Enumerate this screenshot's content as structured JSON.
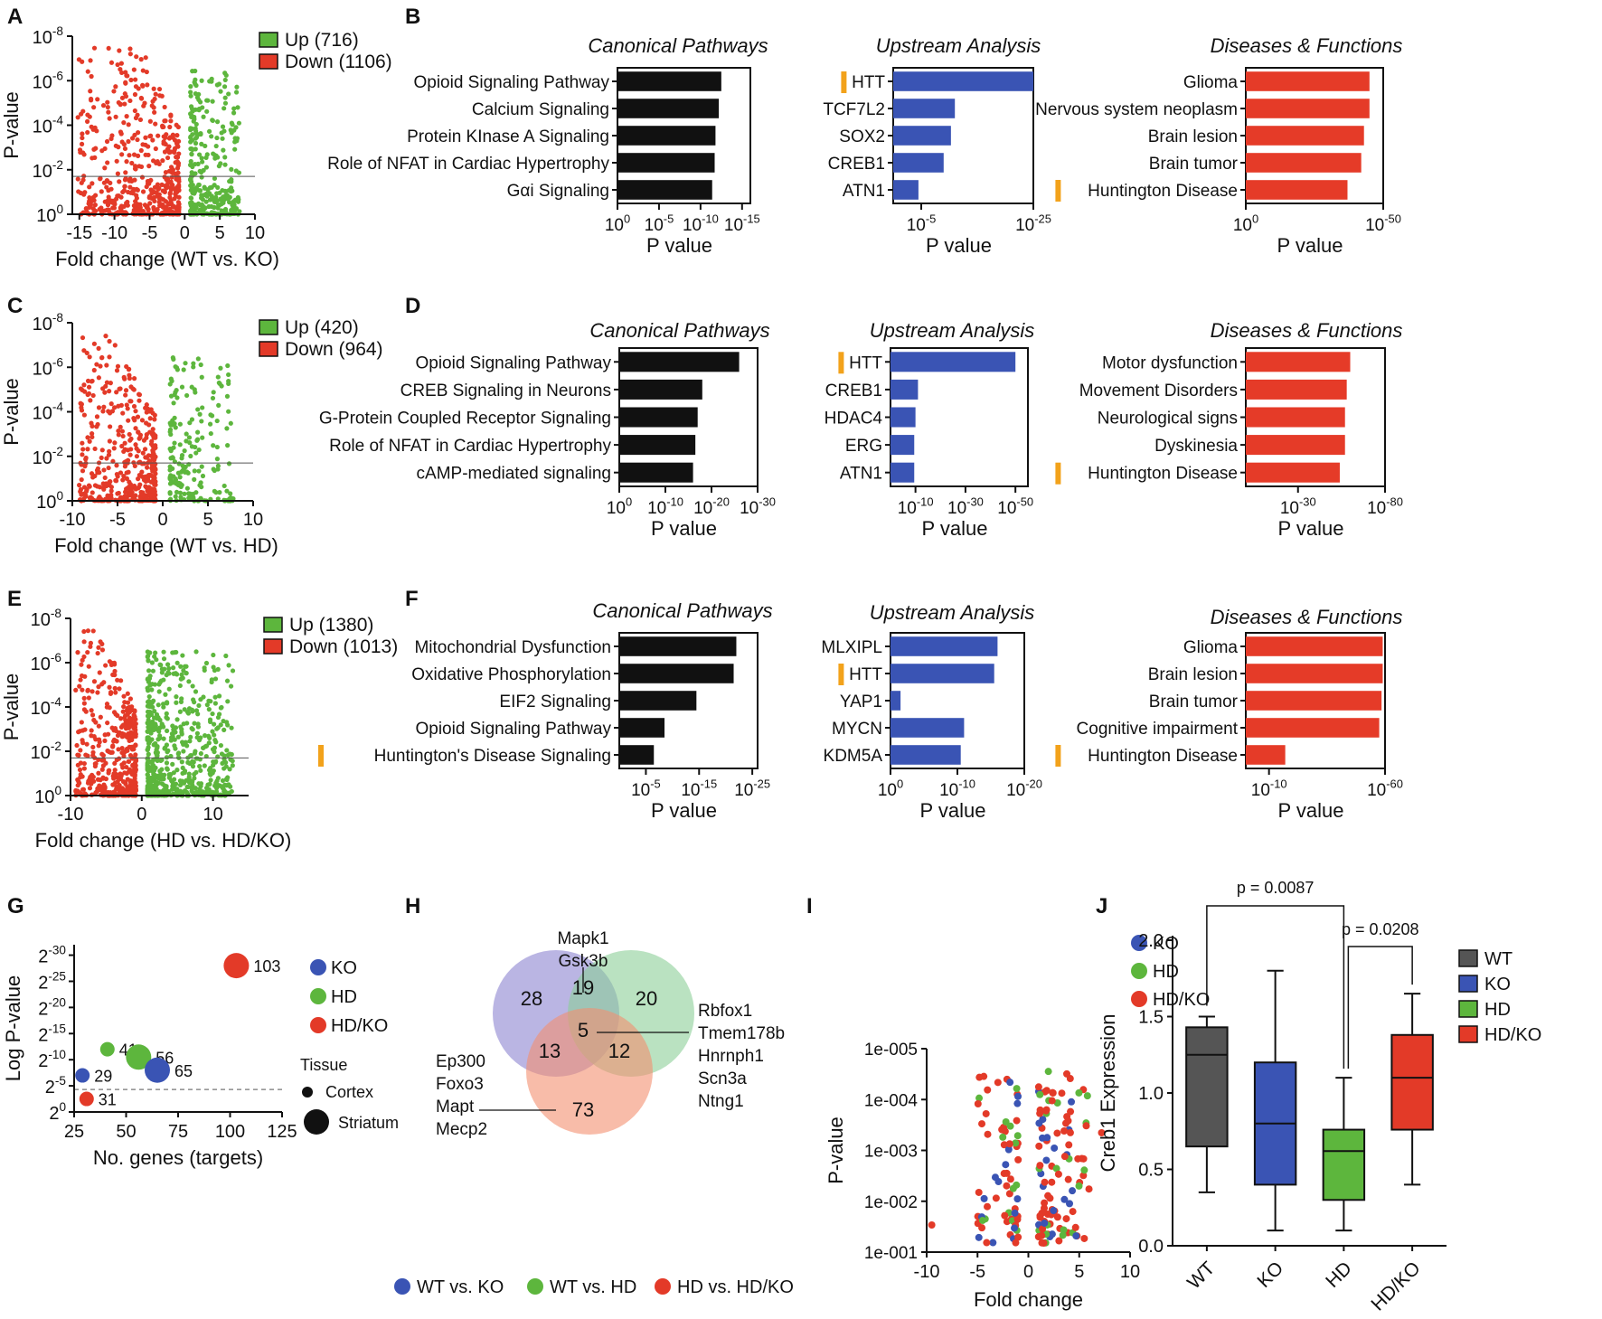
{
  "panel_letters": {
    "A": "A",
    "B": "B",
    "C": "C",
    "D": "D",
    "E": "E",
    "F": "F",
    "G": "G",
    "H": "H",
    "I": "I",
    "J": "J"
  },
  "colors": {
    "up": "#5db63d",
    "down": "#e33a28",
    "blue": "#3a54b4",
    "red": "#e53b28",
    "black": "#111111",
    "orange": "#f2a21b",
    "ko": "#3a54b4",
    "hd": "#5db63d",
    "hdko": "#e33a28",
    "wt": "#555555"
  },
  "panel_titles": {
    "canonical": "Canonical Pathways",
    "upstream": "Upstream Analysis",
    "diseases": "Diseases & Functions"
  },
  "volcano": [
    {
      "id": "A",
      "title": "",
      "xlabel": "Fold change (WT vs. KO)",
      "ylabel": "P-value",
      "xticks": [
        "-15",
        "-10",
        "-5",
        "0",
        "5",
        "10"
      ],
      "xvals": [
        -15,
        -10,
        -5,
        0,
        5,
        10
      ],
      "xlim": [
        -16,
        10
      ],
      "yticks": [
        {
          "b": "10",
          "e": "-8"
        },
        {
          "b": "10",
          "e": "-6"
        },
        {
          "b": "10",
          "e": "-4"
        },
        {
          "b": "10",
          "e": "-2"
        },
        {
          "b": "10",
          "e": "0"
        }
      ],
      "legend": [
        {
          "label": "Up (716)",
          "color": "#5db63d"
        },
        {
          "label": "Down (1106)",
          "color": "#e33a28"
        }
      ],
      "threshold": 1.7,
      "up_count": 716,
      "down_count": 1106
    },
    {
      "id": "C",
      "title": "",
      "xlabel": "Fold change (WT vs. HD)",
      "ylabel": "P-value",
      "xticks": [
        "-10",
        "-5",
        "0",
        "5",
        "10"
      ],
      "xvals": [
        -10,
        -5,
        0,
        5,
        10
      ],
      "xlim": [
        -10,
        10
      ],
      "yticks": [
        {
          "b": "10",
          "e": "-8"
        },
        {
          "b": "10",
          "e": "-6"
        },
        {
          "b": "10",
          "e": "-4"
        },
        {
          "b": "10",
          "e": "-2"
        },
        {
          "b": "10",
          "e": "0"
        }
      ],
      "legend": [
        {
          "label": "Up (420)",
          "color": "#5db63d"
        },
        {
          "label": "Down (964)",
          "color": "#e33a28"
        }
      ],
      "threshold": 1.7,
      "up_count": 420,
      "down_count": 964
    },
    {
      "id": "E",
      "title": "",
      "xlabel": "Fold change (HD vs. HD/KO)",
      "ylabel": "P-value",
      "xticks": [
        "-10",
        "0",
        "10"
      ],
      "xvals": [
        -10,
        0,
        10
      ],
      "xlim": [
        -10,
        15
      ],
      "yticks": [
        {
          "b": "10",
          "e": "-8"
        },
        {
          "b": "10",
          "e": "-6"
        },
        {
          "b": "10",
          "e": "-4"
        },
        {
          "b": "10",
          "e": "-2"
        },
        {
          "b": "10",
          "e": "0"
        }
      ],
      "legend": [
        {
          "label": "Up (1380)",
          "color": "#5db63d"
        },
        {
          "label": "Down (1013)",
          "color": "#e33a28"
        }
      ],
      "threshold": 1.7,
      "up_count": 1380,
      "down_count": 1013
    }
  ],
  "chart_data": [
    {
      "panel": "B",
      "group": "canonical",
      "type": "bar",
      "orientation": "horizontal",
      "title": "Canonical Pathways",
      "xlabel": "P value",
      "unit": "-log10 p",
      "categories": [
        "Opioid Signaling Pathway",
        "Calcium Signaling",
        "Protein KInase A Signaling",
        "Role of NFAT in Cardiac Hypertrophy",
        "Gαi Signaling"
      ],
      "values": [
        12.5,
        12.2,
        11.8,
        11.7,
        11.4
      ],
      "xlim": [
        0,
        16
      ],
      "ticks": [
        {
          "v": 0,
          "b": "10",
          "e": "0"
        },
        {
          "v": 5,
          "b": "10",
          "e": "-5"
        },
        {
          "v": 10,
          "b": "10",
          "e": "-10"
        },
        {
          "v": 15,
          "b": "10",
          "e": "-15"
        }
      ],
      "highlight": [],
      "color": "#111111"
    },
    {
      "panel": "B",
      "group": "upstream",
      "type": "bar",
      "orientation": "horizontal",
      "title": "Upstream Analysis",
      "xlabel": "P value",
      "unit": "-log10 p",
      "categories": [
        "HTT",
        "TCF7L2",
        "SOX2",
        "CREB1",
        "ATN1"
      ],
      "values": [
        25,
        11,
        10.3,
        9,
        4.5
      ],
      "xlim": [
        0,
        25
      ],
      "ticks": [
        {
          "v": 5,
          "b": "10",
          "e": "-5"
        },
        {
          "v": 25,
          "b": "10",
          "e": "-25"
        }
      ],
      "highlight": [
        "HTT"
      ],
      "color": "#3a54b4"
    },
    {
      "panel": "B",
      "group": "diseases",
      "type": "bar",
      "orientation": "horizontal",
      "title": "Diseases & Functions",
      "xlabel": "P value",
      "unit": "-log10 p",
      "categories": [
        "Glioma",
        "Nervous system neoplasm",
        "Brain lesion",
        "Brain tumor",
        "Huntington Disease"
      ],
      "values": [
        45,
        45,
        43,
        42,
        37
      ],
      "xlim": [
        0,
        50
      ],
      "ticks": [
        {
          "v": 0,
          "b": "10",
          "e": "0"
        },
        {
          "v": 50,
          "b": "10",
          "e": "-50"
        }
      ],
      "highlight": [
        "Huntington Disease"
      ],
      "color": "#e53b28"
    },
    {
      "panel": "D",
      "group": "canonical",
      "type": "bar",
      "orientation": "horizontal",
      "title": "Canonical Pathways",
      "xlabel": "P value",
      "unit": "-log10 p",
      "categories": [
        "Opioid Signaling Pathway",
        "CREB Signaling in Neurons",
        "G-Protein Coupled Receptor Signaling",
        "Role of NFAT in Cardiac Hypertrophy",
        "cAMP-mediated signaling"
      ],
      "values": [
        26,
        18,
        17,
        16.5,
        16
      ],
      "xlim": [
        0,
        30
      ],
      "ticks": [
        {
          "v": 0,
          "b": "10",
          "e": "0"
        },
        {
          "v": 10,
          "b": "10",
          "e": "-10"
        },
        {
          "v": 20,
          "b": "10",
          "e": "-20"
        },
        {
          "v": 30,
          "b": "10",
          "e": "-30"
        }
      ],
      "highlight": [],
      "color": "#111111"
    },
    {
      "panel": "D",
      "group": "upstream",
      "type": "bar",
      "orientation": "horizontal",
      "title": "Upstream Analysis",
      "xlabel": "P value",
      "unit": "-log10 p",
      "categories": [
        "HTT",
        "CREB1",
        "HDAC4",
        "ERG",
        "ATN1"
      ],
      "values": [
        50,
        11,
        10,
        9.5,
        9.5
      ],
      "xlim": [
        0,
        55
      ],
      "ticks": [
        {
          "v": 10,
          "b": "10",
          "e": "-10"
        },
        {
          "v": 30,
          "b": "10",
          "e": "-30"
        },
        {
          "v": 50,
          "b": "10",
          "e": "-50"
        }
      ],
      "highlight": [
        "HTT"
      ],
      "color": "#3a54b4"
    },
    {
      "panel": "D",
      "group": "diseases",
      "type": "bar",
      "orientation": "horizontal",
      "title": "Diseases & Functions",
      "xlabel": "P value",
      "unit": "-log10 p",
      "categories": [
        "Motor dysfunction",
        "Movement Disorders",
        "Neurological signs",
        "Dyskinesia",
        "Huntington Disease"
      ],
      "values": [
        60,
        58,
        57,
        57,
        54
      ],
      "xlim": [
        0,
        80
      ],
      "ticks": [
        {
          "v": 30,
          "b": "10",
          "e": "-30"
        },
        {
          "v": 80,
          "b": "10",
          "e": "-80"
        }
      ],
      "highlight": [
        "Huntington Disease"
      ],
      "color": "#e53b28"
    },
    {
      "panel": "F",
      "group": "canonical",
      "type": "bar",
      "orientation": "horizontal",
      "title": "Canonical Pathways",
      "xlabel": "P value",
      "unit": "-log10 p",
      "categories": [
        "Mitochondrial Dysfunction",
        "Oxidative Phosphorylation",
        "EIF2 Signaling",
        "Opioid Signaling Pathway",
        "Huntington's Disease Signaling"
      ],
      "values": [
        22,
        21.5,
        14.5,
        8.5,
        6.5
      ],
      "xlim": [
        0,
        26
      ],
      "ticks": [
        {
          "v": 5,
          "b": "10",
          "e": "-5"
        },
        {
          "v": 15,
          "b": "10",
          "e": "-15"
        },
        {
          "v": 25,
          "b": "10",
          "e": "-25"
        }
      ],
      "highlight": [
        "Huntington's Disease Signaling"
      ],
      "color": "#111111"
    },
    {
      "panel": "F",
      "group": "upstream",
      "type": "bar",
      "orientation": "horizontal",
      "title": "Upstream Analysis",
      "xlabel": "P value",
      "unit": "-log10 p",
      "categories": [
        "MLXIPL",
        "HTT",
        "YAP1",
        "MYCN",
        "KDM5A"
      ],
      "values": [
        16,
        15.5,
        1.5,
        11,
        10.5
      ],
      "xlim": [
        0,
        20
      ],
      "ticks": [
        {
          "v": 0,
          "b": "10",
          "e": "0"
        },
        {
          "v": 10,
          "b": "10",
          "e": "-10"
        },
        {
          "v": 20,
          "b": "10",
          "e": "-20"
        }
      ],
      "highlight": [
        "HTT"
      ],
      "color": "#3a54b4"
    },
    {
      "panel": "F",
      "group": "diseases",
      "type": "bar",
      "orientation": "horizontal",
      "title": "Diseases & Functions",
      "xlabel": "P value",
      "unit": "-log10 p",
      "categories": [
        "Glioma",
        "Brain lesion",
        "Brain tumor",
        "Cognitive impairment",
        "Huntington Disease"
      ],
      "values": [
        59,
        59,
        58.5,
        57.5,
        17
      ],
      "xlim": [
        0,
        60
      ],
      "ticks": [
        {
          "v": 10,
          "b": "10",
          "e": "-10"
        },
        {
          "v": 60,
          "b": "10",
          "e": "-60"
        }
      ],
      "highlight": [
        "Huntington Disease"
      ],
      "color": "#e53b28"
    },
    {
      "panel": "G",
      "type": "scatter",
      "title": "",
      "xlabel": "No. genes (targets)",
      "ylabel": "Log P-value",
      "xticks": [
        25,
        50,
        75,
        100,
        125
      ],
      "xlim": [
        25,
        125
      ],
      "yticks": [
        {
          "v": 0,
          "b": "2",
          "e": "0"
        },
        {
          "v": 5,
          "b": "2",
          "e": "-5"
        },
        {
          "v": 10,
          "b": "2",
          "e": "-10"
        },
        {
          "v": 15,
          "b": "2",
          "e": "-15"
        },
        {
          "v": 20,
          "b": "2",
          "e": "-20"
        },
        {
          "v": 25,
          "b": "2",
          "e": "-25"
        },
        {
          "v": 30,
          "b": "2",
          "e": "-30"
        }
      ],
      "ylim": [
        0,
        32
      ],
      "threshold": 4.3,
      "points": [
        {
          "x": 103,
          "y": 28,
          "n": "103",
          "group": "HD/KO",
          "tissue": "Striatum"
        },
        {
          "x": 41,
          "y": 12,
          "n": "41",
          "group": "HD",
          "tissue": "Cortex"
        },
        {
          "x": 56,
          "y": 10.5,
          "n": "56",
          "group": "HD",
          "tissue": "Striatum"
        },
        {
          "x": 65,
          "y": 8,
          "n": "65",
          "group": "KO",
          "tissue": "Striatum"
        },
        {
          "x": 29,
          "y": 7,
          "n": "29",
          "group": "KO",
          "tissue": "Cortex"
        },
        {
          "x": 31,
          "y": 2.5,
          "n": "31",
          "group": "HD/KO",
          "tissue": "Cortex"
        }
      ],
      "legend": [
        {
          "label": "KO",
          "color": "#3a54b4"
        },
        {
          "label": "HD",
          "color": "#5db63d"
        },
        {
          "label": "HD/KO",
          "color": "#e33a28"
        }
      ],
      "tissue_title": "Tissue",
      "tissue": [
        {
          "label": "Cortex"
        },
        {
          "label": "Striatum"
        }
      ]
    },
    {
      "panel": "H",
      "type": "venn",
      "sets": [
        {
          "label": "WT vs. KO",
          "color": "#3a54b4"
        },
        {
          "label": "WT vs. HD",
          "color": "#5db63d"
        },
        {
          "label": "HD vs. HD/KO",
          "color": "#e33a28"
        }
      ],
      "regions": {
        "wt_ko_only": "28",
        "wt_hd_only": "20",
        "hdko_only": "73",
        "ko_hd": "19",
        "ko_hdko": "13",
        "hd_hdko": "12",
        "all": "5"
      },
      "annotations": {
        "top": [
          "Mapk1",
          "Gsk3b"
        ],
        "right": [
          "Rbfox1",
          "Tmem178b",
          "Hnrnph1",
          "Scn3a",
          "Ntng1"
        ],
        "left": [
          "Ep300",
          "Foxo3",
          "Mapt",
          "Mecp2"
        ]
      }
    },
    {
      "panel": "I",
      "type": "scatter",
      "title": "",
      "xlabel": "Fold change",
      "ylabel": "P-value",
      "xticks": [
        "-10",
        "-5",
        "0",
        "5",
        "10"
      ],
      "xvals": [
        -10,
        -5,
        0,
        5,
        10
      ],
      "xlim": [
        -10,
        10
      ],
      "yticks": [
        "1e-005",
        "1e-004",
        "1e-003",
        "1e-002",
        "1e-001"
      ],
      "ylim": [
        1,
        5
      ],
      "series": [
        {
          "name": "KO",
          "color": "#3a54b4"
        },
        {
          "name": "HD",
          "color": "#5db63d"
        },
        {
          "name": "HD/KO",
          "color": "#e33a28"
        }
      ]
    },
    {
      "panel": "J",
      "type": "box",
      "title": "",
      "ylabel": "Creb1 Expression",
      "categories": [
        "WT",
        "KO",
        "HD",
        "HD/KO"
      ],
      "colors": [
        "#555555",
        "#3a54b4",
        "#5db63d",
        "#e33a28"
      ],
      "boxes": [
        {
          "min": 0.35,
          "q1": 0.65,
          "median": 1.25,
          "q3": 1.43,
          "max": 1.5
        },
        {
          "min": 0.1,
          "q1": 0.4,
          "median": 0.8,
          "q3": 1.2,
          "max": 1.8
        },
        {
          "min": 0.1,
          "q1": 0.3,
          "median": 0.62,
          "q3": 0.76,
          "max": 1.1
        },
        {
          "min": 0.4,
          "q1": 0.76,
          "median": 1.1,
          "q3": 1.38,
          "max": 1.65
        }
      ],
      "ylim": [
        0,
        2.0
      ],
      "yticks": [
        "0.0",
        "0.5",
        "1.0",
        "1.5",
        "2.0"
      ],
      "ytickvals": [
        0,
        0.5,
        1.0,
        1.5,
        2.0
      ],
      "comparisons": [
        {
          "from": "WT",
          "to": "HD",
          "label": "p = 0.0087"
        },
        {
          "from": "HD",
          "to": "HD/KO",
          "label": "p = 0.0208"
        }
      ],
      "legend": [
        "WT",
        "KO",
        "HD",
        "HD/KO"
      ]
    }
  ]
}
